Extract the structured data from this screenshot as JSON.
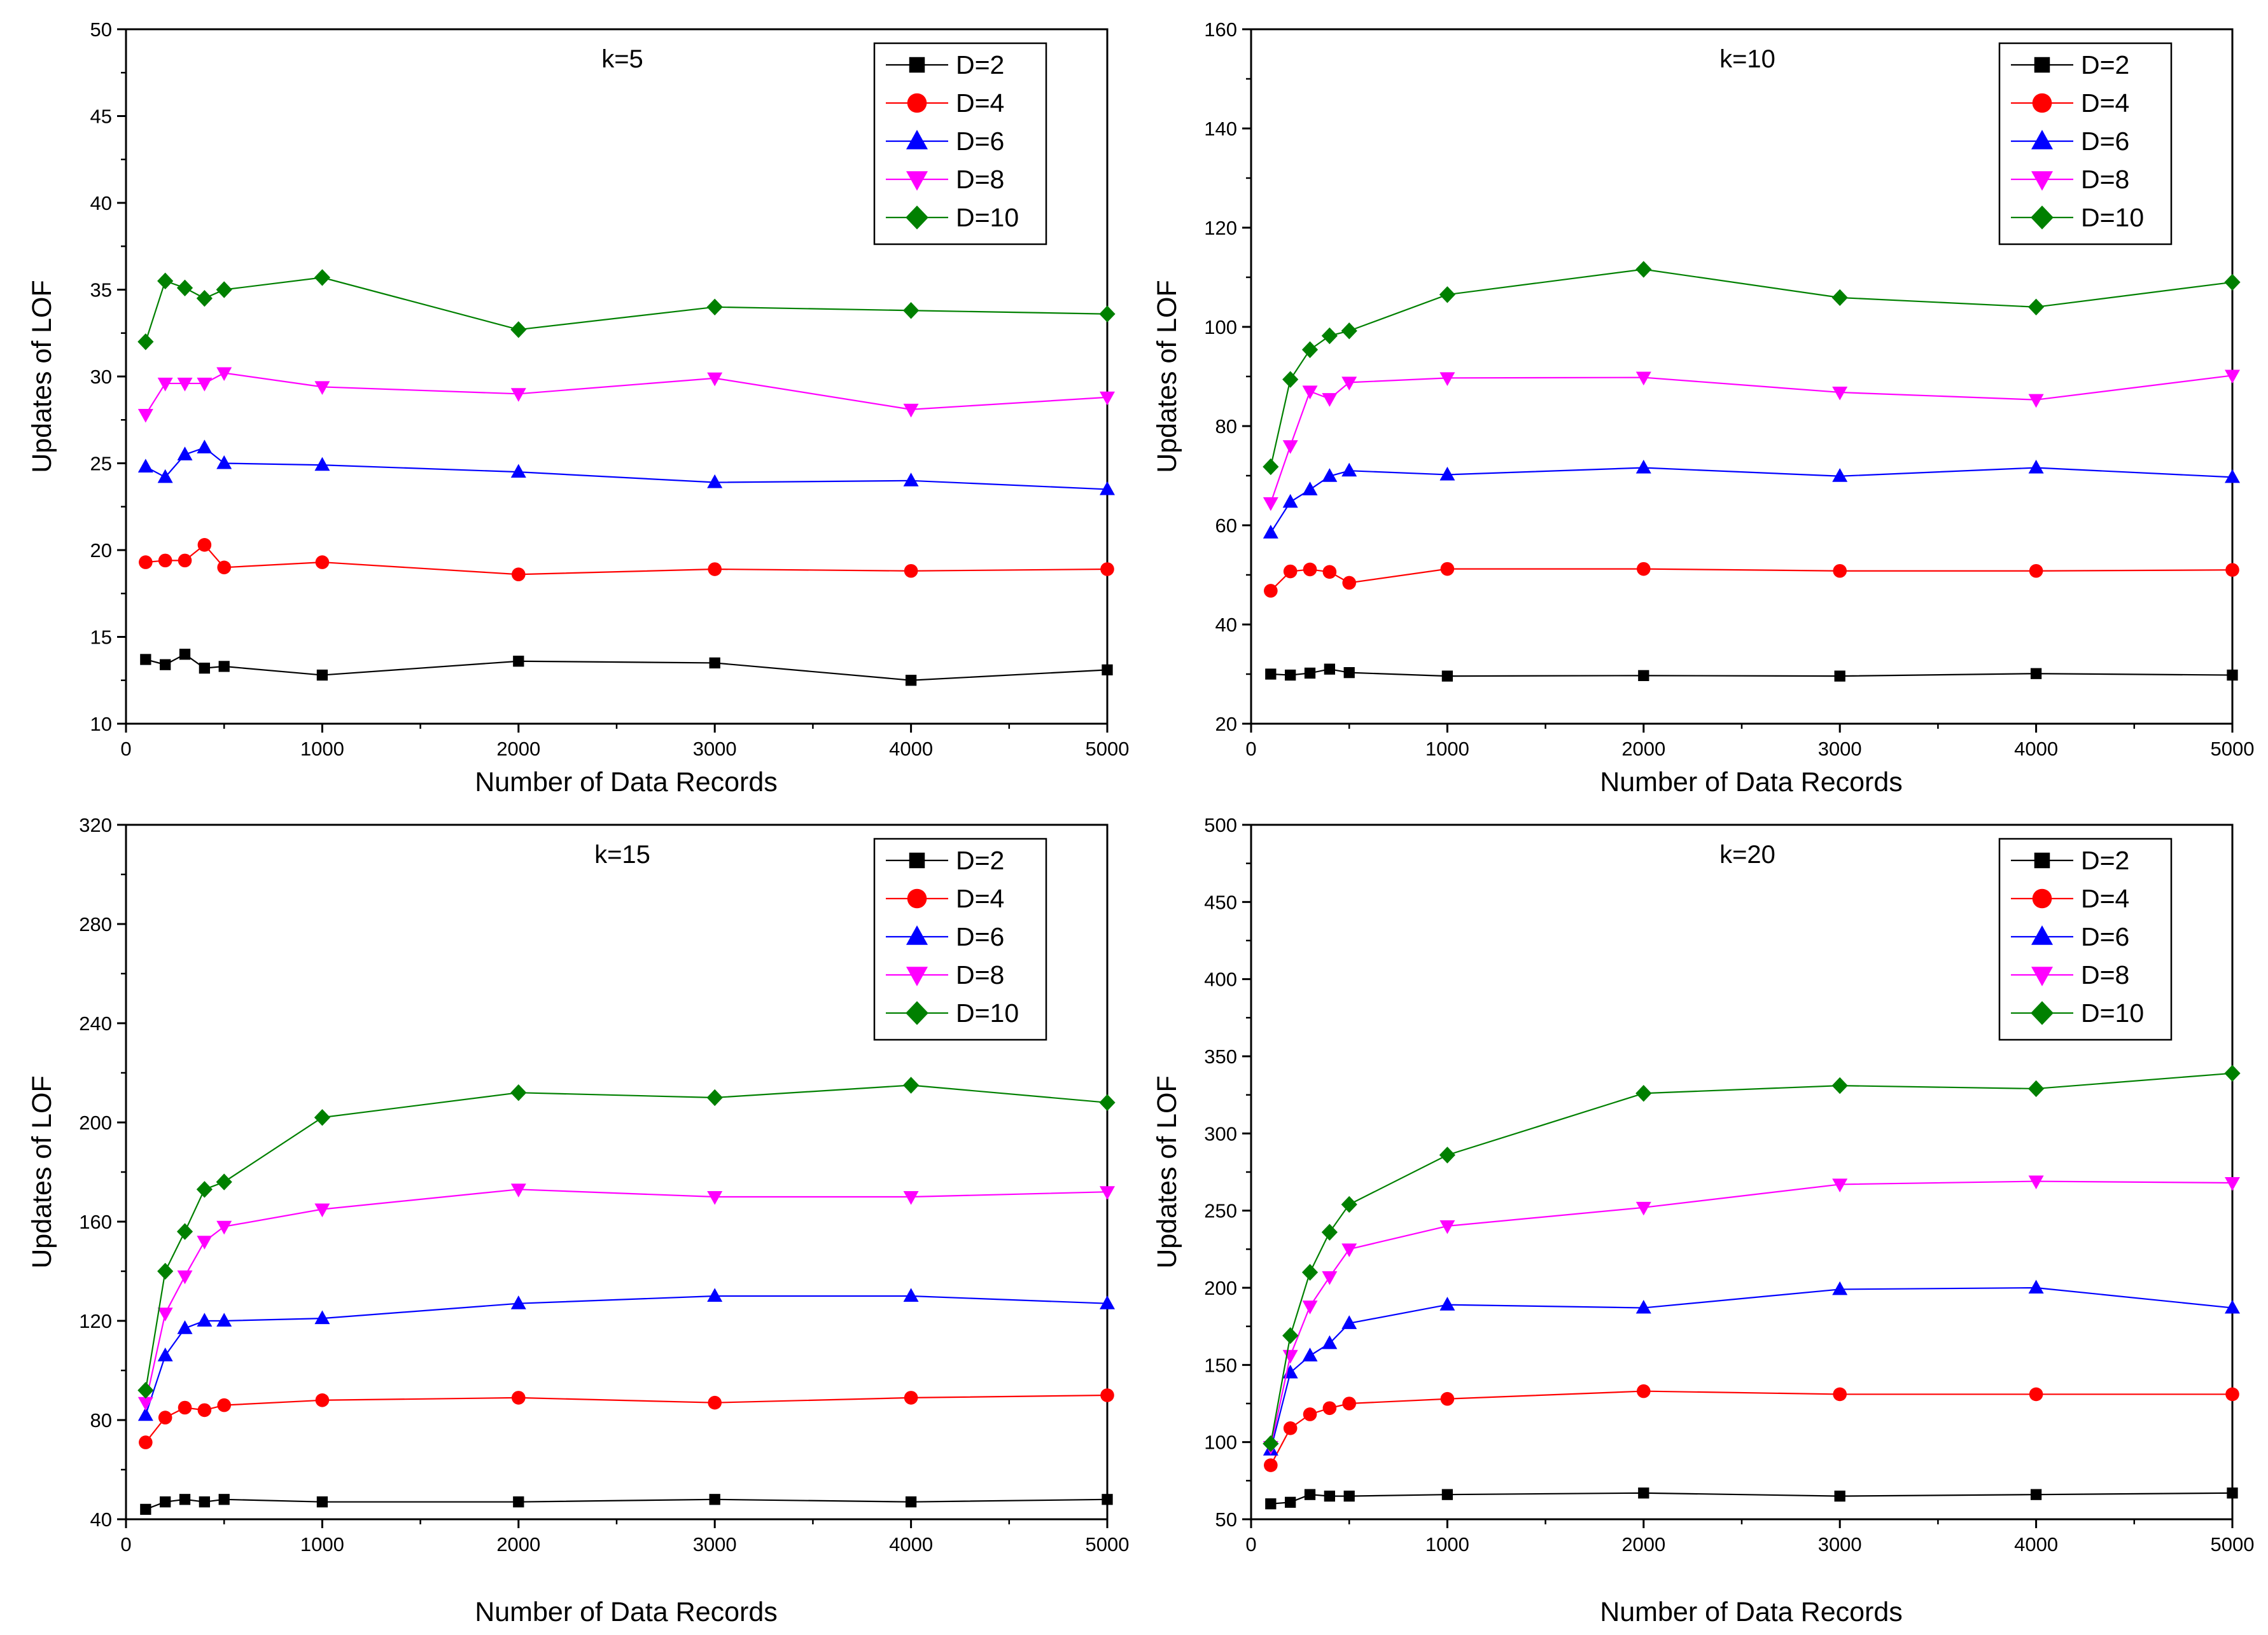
{
  "chart_data": [
    {
      "type": "line",
      "title": "k=5",
      "xlabel": "Number of Data Records",
      "ylabel": "Updates of LOF",
      "xlim": [
        0,
        5000
      ],
      "ylim": [
        10,
        50
      ],
      "xticks": [
        0,
        1000,
        2000,
        3000,
        4000,
        5000
      ],
      "yticks": [
        10,
        15,
        20,
        25,
        30,
        35,
        40,
        45,
        50
      ],
      "legend_position": "top-right",
      "grid": false,
      "x": [
        100,
        200,
        300,
        400,
        500,
        1000,
        2000,
        3000,
        4000,
        5000
      ],
      "series": [
        {
          "name": "D=2",
          "marker": "square",
          "color": "#000000",
          "values": [
            13.7,
            13.4,
            14.0,
            13.2,
            13.3,
            12.8,
            13.6,
            13.5,
            12.5,
            13.1
          ]
        },
        {
          "name": "D=4",
          "marker": "circle",
          "color": "#ff0000",
          "values": [
            19.3,
            19.4,
            19.4,
            20.3,
            19.0,
            19.3,
            18.6,
            18.9,
            18.8,
            18.9
          ]
        },
        {
          "name": "D=6",
          "marker": "triangle-up",
          "color": "#0000ff",
          "values": [
            24.8,
            24.2,
            25.5,
            25.9,
            25.0,
            24.9,
            24.5,
            23.9,
            24.0,
            23.5
          ]
        },
        {
          "name": "D=8",
          "marker": "triangle-down",
          "color": "#ff00ff",
          "values": [
            27.8,
            29.6,
            29.6,
            29.6,
            30.2,
            29.4,
            29.0,
            29.9,
            28.1,
            28.8
          ]
        },
        {
          "name": "D=10",
          "marker": "diamond",
          "color": "#008000",
          "values": [
            32.0,
            35.5,
            35.1,
            34.5,
            35.0,
            35.7,
            32.7,
            34.0,
            33.8,
            33.6
          ]
        }
      ]
    },
    {
      "type": "line",
      "title": "k=10",
      "xlabel": "Number of Data Records",
      "ylabel": "Updates of LOF",
      "xlim": [
        0,
        5000
      ],
      "ylim": [
        20,
        160
      ],
      "xticks": [
        0,
        1000,
        2000,
        3000,
        4000,
        5000
      ],
      "yticks": [
        20,
        40,
        60,
        80,
        100,
        120,
        140,
        160
      ],
      "legend_position": "top-right",
      "grid": false,
      "x": [
        100,
        200,
        300,
        400,
        500,
        1000,
        2000,
        3000,
        4000,
        5000
      ],
      "series": [
        {
          "name": "D=2",
          "marker": "square",
          "color": "#000000",
          "values": [
            30.0,
            29.8,
            30.2,
            31.0,
            30.3,
            29.6,
            29.7,
            29.6,
            30.1,
            29.8
          ]
        },
        {
          "name": "D=4",
          "marker": "circle",
          "color": "#ff0000",
          "values": [
            46.8,
            50.7,
            51.1,
            50.6,
            48.4,
            51.2,
            51.2,
            50.8,
            50.8,
            51.0
          ]
        },
        {
          "name": "D=6",
          "marker": "triangle-up",
          "color": "#0000ff",
          "values": [
            58.5,
            64.7,
            67.2,
            69.9,
            71.0,
            70.2,
            71.6,
            69.9,
            71.6,
            69.7
          ]
        },
        {
          "name": "D=8",
          "marker": "triangle-down",
          "color": "#ff00ff",
          "values": [
            64.5,
            76.0,
            87.0,
            85.5,
            88.8,
            89.7,
            89.8,
            86.8,
            85.3,
            90.2
          ]
        },
        {
          "name": "D=10",
          "marker": "diamond",
          "color": "#008000",
          "values": [
            71.8,
            89.4,
            95.4,
            98.2,
            99.2,
            106.5,
            111.6,
            105.9,
            104.0,
            109.0
          ]
        }
      ]
    },
    {
      "type": "line",
      "title": "k=15",
      "xlabel": "Number of Data Records",
      "ylabel": "Updates of LOF",
      "xlim": [
        0,
        5000
      ],
      "ylim": [
        40,
        320
      ],
      "xticks": [
        0,
        1000,
        2000,
        3000,
        4000,
        5000
      ],
      "yticks": [
        40,
        80,
        120,
        160,
        200,
        240,
        280,
        320
      ],
      "legend_position": "top-right",
      "grid": false,
      "x": [
        100,
        200,
        300,
        400,
        500,
        1000,
        2000,
        3000,
        4000,
        5000
      ],
      "series": [
        {
          "name": "D=2",
          "marker": "square",
          "color": "#000000",
          "values": [
            44,
            47,
            48,
            47,
            48,
            47,
            47,
            48,
            47,
            48
          ]
        },
        {
          "name": "D=4",
          "marker": "circle",
          "color": "#ff0000",
          "values": [
            71,
            81,
            85,
            84,
            86,
            88,
            89,
            87,
            89,
            90
          ]
        },
        {
          "name": "D=6",
          "marker": "triangle-up",
          "color": "#0000ff",
          "values": [
            82,
            106,
            117,
            120,
            120,
            121,
            127,
            130,
            130,
            127
          ]
        },
        {
          "name": "D=8",
          "marker": "triangle-down",
          "color": "#ff00ff",
          "values": [
            87,
            123,
            138,
            152,
            158,
            165,
            173,
            170,
            170,
            172
          ]
        },
        {
          "name": "D=10",
          "marker": "diamond",
          "color": "#008000",
          "values": [
            92,
            140,
            156,
            173,
            176,
            202,
            212,
            210,
            215,
            208
          ]
        }
      ]
    },
    {
      "type": "line",
      "title": "k=20",
      "xlabel": "Number of Data Records",
      "ylabel": "Updates of LOF",
      "xlim": [
        0,
        5000
      ],
      "ylim": [
        50,
        500
      ],
      "xticks": [
        0,
        1000,
        2000,
        3000,
        4000,
        5000
      ],
      "yticks": [
        50,
        100,
        150,
        200,
        250,
        300,
        350,
        400,
        450,
        500
      ],
      "legend_position": "top-right",
      "grid": false,
      "x": [
        100,
        200,
        300,
        400,
        500,
        1000,
        2000,
        3000,
        4000,
        5000
      ],
      "series": [
        {
          "name": "D=2",
          "marker": "square",
          "color": "#000000",
          "values": [
            60,
            61,
            66,
            65,
            65,
            66,
            67,
            65,
            66,
            67
          ]
        },
        {
          "name": "D=4",
          "marker": "circle",
          "color": "#ff0000",
          "values": [
            85,
            109,
            118,
            122,
            125,
            128,
            133,
            131,
            131,
            131
          ]
        },
        {
          "name": "D=6",
          "marker": "triangle-up",
          "color": "#0000ff",
          "values": [
            95,
            145,
            156,
            164,
            177,
            189,
            187,
            199,
            200,
            187
          ]
        },
        {
          "name": "D=8",
          "marker": "triangle-down",
          "color": "#ff00ff",
          "values": [
            97,
            156,
            188,
            207,
            225,
            240,
            252,
            267,
            269,
            268
          ]
        },
        {
          "name": "D=10",
          "marker": "diamond",
          "color": "#008000",
          "values": [
            99,
            169,
            210,
            236,
            254,
            286,
            326,
            331,
            329,
            339
          ]
        }
      ]
    }
  ]
}
